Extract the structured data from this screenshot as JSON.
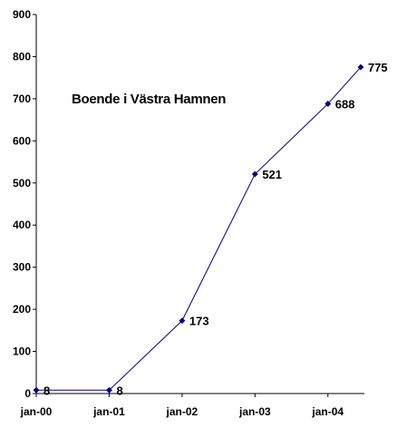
{
  "chart_data": {
    "type": "line",
    "title": "Boende i Västra Hamnen",
    "xlabel": "",
    "ylabel": "",
    "x": [
      0,
      1,
      2,
      3,
      4,
      4.45
    ],
    "values": [
      8,
      8,
      173,
      521,
      688,
      775
    ],
    "data_labels": [
      "8",
      "8",
      "173",
      "521",
      "688",
      "775"
    ],
    "x_ticks": [
      0,
      1,
      2,
      3,
      4
    ],
    "x_tick_labels": [
      "jan-00",
      "jan-01",
      "jan-02",
      "jan-03",
      "jan-04"
    ],
    "y_ticks": [
      0,
      100,
      200,
      300,
      400,
      500,
      600,
      700,
      800,
      900
    ],
    "y_tick_labels": [
      "0",
      "100",
      "200",
      "300",
      "400",
      "500",
      "600",
      "700",
      "800",
      "900"
    ],
    "ylim": [
      0,
      900
    ],
    "xlim": [
      0,
      4.5
    ],
    "grid": false,
    "legend": "none",
    "colors": {
      "line": "#000080",
      "marker": "#000080",
      "axis": "#000000",
      "text": "#000000"
    },
    "marker": "diamond"
  }
}
